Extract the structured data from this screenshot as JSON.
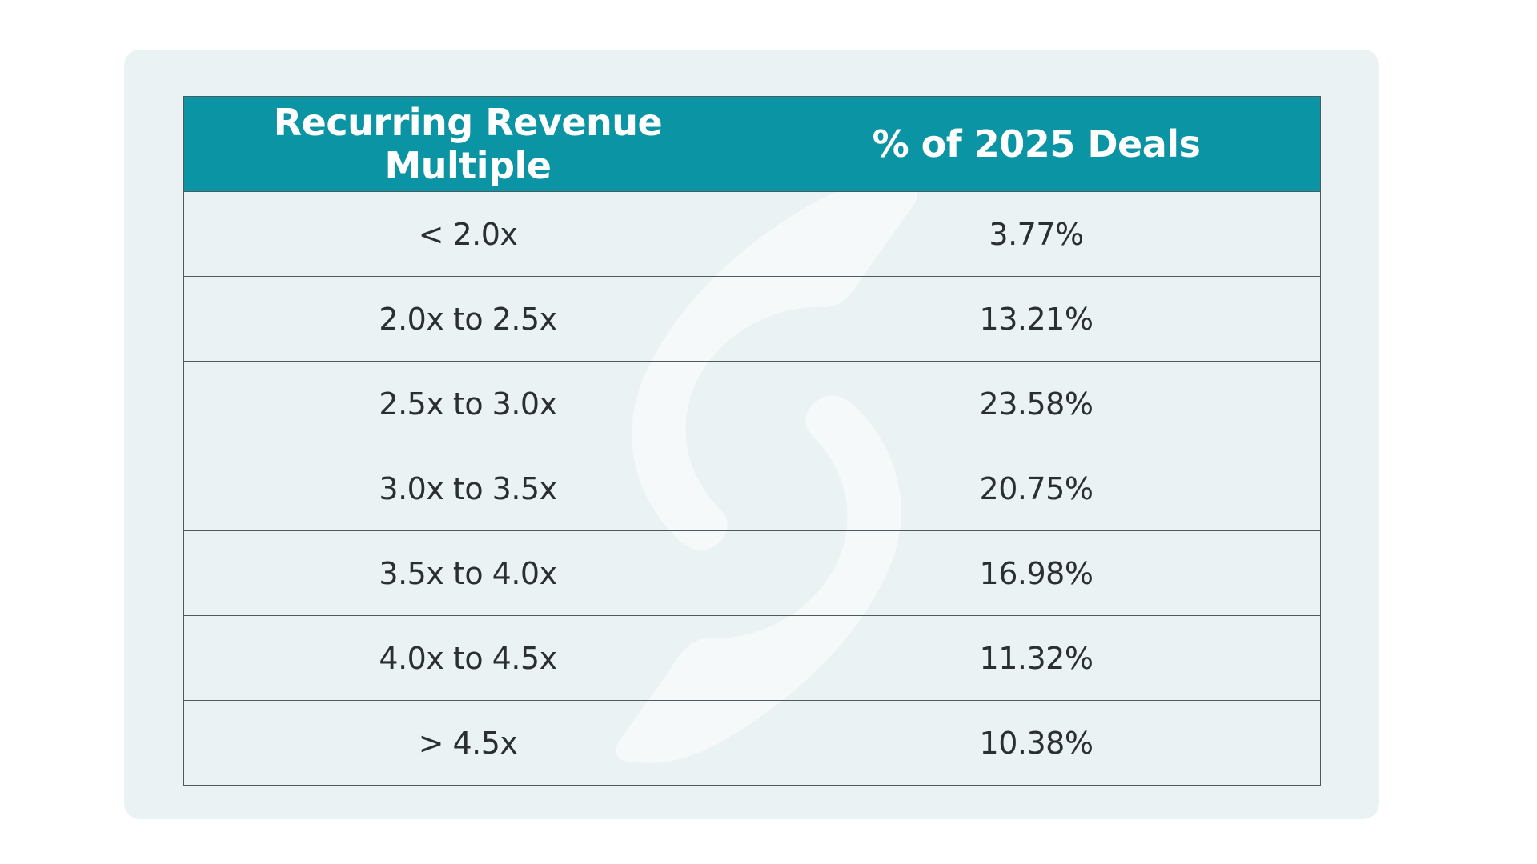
{
  "chart_data": {
    "type": "table",
    "columns": [
      "Recurring Revenue Multiple",
      "% of 2025 Deals"
    ],
    "rows": [
      {
        "multiple": "< 2.0x",
        "percent": "3.77%"
      },
      {
        "multiple": "2.0x to 2.5x",
        "percent": "13.21%"
      },
      {
        "multiple": "2.5x to 3.0x",
        "percent": "23.58%"
      },
      {
        "multiple": "3.0x to 3.5x",
        "percent": "20.75%"
      },
      {
        "multiple": "3.5x to 4.0x",
        "percent": "16.98%"
      },
      {
        "multiple": "4.0x to 4.5x",
        "percent": "11.32%"
      },
      {
        "multiple": "> 4.5x",
        "percent": "10.38%"
      }
    ]
  },
  "colors": {
    "header_bg": "#0a94a4",
    "card_bg": "#eaf2f4",
    "border": "#4d5a60",
    "text": "#2b2f33"
  },
  "icons": {
    "watermark": "sync-arrows-watermark-icon"
  }
}
